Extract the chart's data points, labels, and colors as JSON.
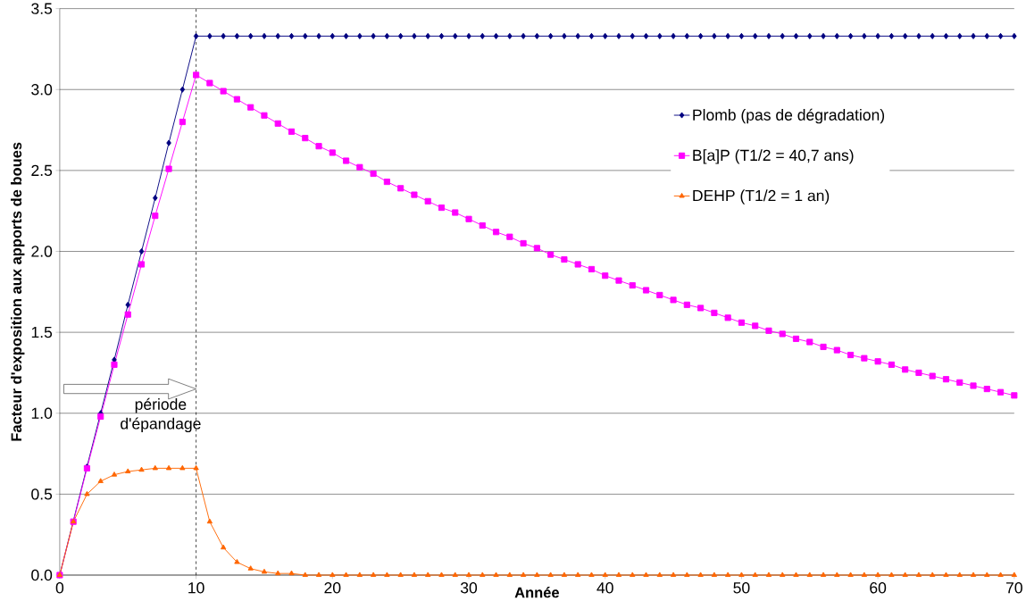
{
  "chart_data": {
    "type": "line",
    "xlabel": "Année",
    "ylabel": "Facteur d'exposition aux apports de boues",
    "x": [
      0,
      1,
      2,
      3,
      4,
      5,
      6,
      7,
      8,
      9,
      10,
      11,
      12,
      13,
      14,
      15,
      16,
      17,
      18,
      19,
      20,
      21,
      22,
      23,
      24,
      25,
      26,
      27,
      28,
      29,
      30,
      31,
      32,
      33,
      34,
      35,
      36,
      37,
      38,
      39,
      40,
      41,
      42,
      43,
      44,
      45,
      46,
      47,
      48,
      49,
      50,
      51,
      52,
      53,
      54,
      55,
      56,
      57,
      58,
      59,
      60,
      61,
      62,
      63,
      64,
      65,
      66,
      67,
      68,
      69,
      70
    ],
    "series": [
      {
        "name": "Plomb (pas de dégradation)",
        "color": "#000080",
        "marker": "diamond",
        "values": [
          0,
          null,
          0.67,
          1.0,
          1.33,
          1.67,
          2.0,
          2.33,
          2.67,
          3.0,
          3.33,
          3.33,
          3.33,
          3.33,
          3.33,
          3.33,
          3.33,
          3.33,
          3.33,
          3.33,
          3.33,
          3.33,
          3.33,
          3.33,
          3.33,
          3.33,
          3.33,
          3.33,
          3.33,
          3.33,
          3.33,
          3.33,
          3.33,
          3.33,
          3.33,
          3.33,
          3.33,
          3.33,
          3.33,
          3.33,
          3.33,
          3.33,
          3.33,
          3.33,
          3.33,
          3.33,
          3.33,
          3.33,
          3.33,
          3.33,
          3.33,
          3.33,
          3.33,
          3.33,
          3.33,
          3.33,
          3.33,
          3.33,
          3.33,
          3.33,
          3.33,
          3.33,
          3.33,
          3.33,
          3.33,
          3.33,
          3.33,
          3.33,
          3.33,
          3.33,
          3.33
        ]
      },
      {
        "name": "B[a]P (T1/2 = 40,7 ans)",
        "color": "#ff00ff",
        "marker": "square",
        "values": [
          0,
          0.33,
          0.66,
          0.98,
          1.3,
          1.61,
          1.92,
          2.22,
          2.51,
          2.8,
          3.09,
          3.04,
          2.99,
          2.94,
          2.89,
          2.84,
          2.79,
          2.74,
          2.7,
          2.65,
          2.61,
          2.56,
          2.52,
          2.48,
          2.43,
          2.39,
          2.35,
          2.31,
          2.27,
          2.24,
          2.2,
          2.16,
          2.12,
          2.09,
          2.05,
          2.02,
          1.98,
          1.95,
          1.92,
          1.89,
          1.85,
          1.82,
          1.79,
          1.76,
          1.73,
          1.7,
          1.67,
          1.65,
          1.62,
          1.59,
          1.56,
          1.54,
          1.51,
          1.49,
          1.46,
          1.44,
          1.41,
          1.39,
          1.36,
          1.34,
          1.32,
          1.3,
          1.27,
          1.25,
          1.23,
          1.21,
          1.19,
          1.17,
          1.15,
          1.13,
          1.11
        ]
      },
      {
        "name": "DEHP (T1/2 = 1 an)",
        "color": "#ff6600",
        "marker": "triangle",
        "values": [
          0,
          0.33,
          0.5,
          0.58,
          0.62,
          0.64,
          0.65,
          0.66,
          0.66,
          0.66,
          0.66,
          0.33,
          0.17,
          0.08,
          0.04,
          0.02,
          0.01,
          0.01,
          0,
          0,
          0,
          0,
          0,
          0,
          0,
          0,
          0,
          0,
          0,
          0,
          0,
          0,
          0,
          0,
          0,
          0,
          0,
          0,
          0,
          0,
          0,
          0,
          0,
          0,
          0,
          0,
          0,
          0,
          0,
          0,
          0,
          0,
          0,
          0,
          0,
          0,
          0,
          0,
          0,
          0,
          0,
          0,
          0,
          0,
          0,
          0,
          0,
          0,
          0,
          0,
          0
        ]
      }
    ],
    "xlim": [
      0,
      70
    ],
    "xticks": [
      0,
      10,
      20,
      30,
      40,
      50,
      60,
      70
    ],
    "ylim": [
      0,
      3.5
    ],
    "yticks": [
      {
        "value": 0,
        "label": "0.0"
      },
      {
        "value": 0.5,
        "label": "0.5"
      },
      {
        "value": 1,
        "label": "1.0"
      },
      {
        "value": 1.5,
        "label": "1.5"
      },
      {
        "value": 2,
        "label": "2.0"
      },
      {
        "value": 2.5,
        "label": "2.5"
      },
      {
        "value": 3,
        "label": "3.0"
      },
      {
        "value": 3.5,
        "label": "3.5"
      }
    ],
    "grid": "y",
    "legend": "right",
    "line_style": "solid",
    "ref_lines": [
      {
        "axis": "x",
        "value": 10,
        "label": "période d'épandage",
        "color": "#000000",
        "line_style": "dashed"
      }
    ]
  }
}
